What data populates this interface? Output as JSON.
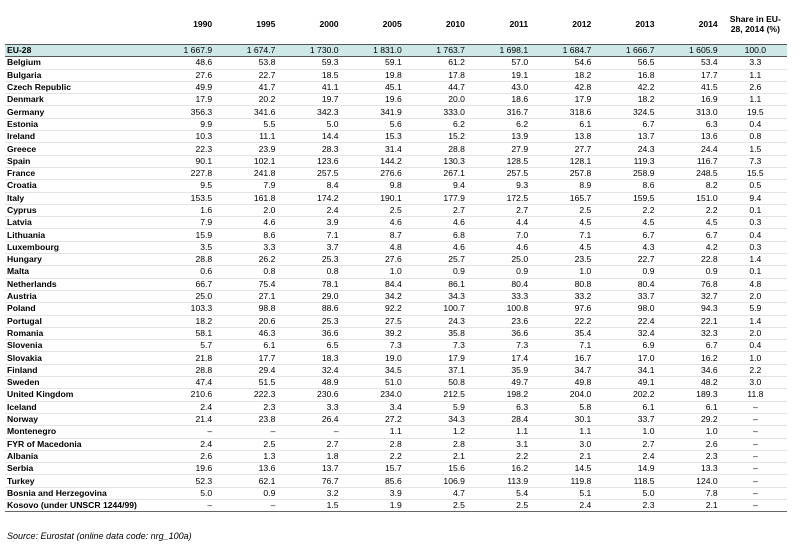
{
  "table": {
    "columns": [
      "1990",
      "1995",
      "2000",
      "2005",
      "2010",
      "2011",
      "2012",
      "2013",
      "2014",
      "Share in EU-28, 2014 (%)"
    ],
    "groups": [
      {
        "rows": [
          {
            "name": "EU-28",
            "values": [
              "1 667.9",
              "1 674.7",
              "1 730.0",
              "1 831.0",
              "1 763.7",
              "1 698.1",
              "1 684.7",
              "1 666.7",
              "1 605.9",
              "100.0"
            ]
          }
        ]
      },
      {
        "rows": [
          {
            "name": "Belgium",
            "values": [
              "48.6",
              "53.8",
              "59.3",
              "59.1",
              "61.2",
              "57.0",
              "54.6",
              "56.5",
              "53.4",
              "3.3"
            ]
          },
          {
            "name": "Bulgaria",
            "values": [
              "27.6",
              "22.7",
              "18.5",
              "19.8",
              "17.8",
              "19.1",
              "18.2",
              "16.8",
              "17.7",
              "1.1"
            ]
          },
          {
            "name": "Czech Republic",
            "values": [
              "49.9",
              "41.7",
              "41.1",
              "45.1",
              "44.7",
              "43.0",
              "42.8",
              "42.2",
              "41.5",
              "2.6"
            ]
          },
          {
            "name": "Denmark",
            "values": [
              "17.9",
              "20.2",
              "19.7",
              "19.6",
              "20.0",
              "18.6",
              "17.9",
              "18.2",
              "16.9",
              "1.1"
            ]
          },
          {
            "name": "Germany",
            "values": [
              "356.3",
              "341.6",
              "342.3",
              "341.9",
              "333.0",
              "316.7",
              "318.6",
              "324.5",
              "313.0",
              "19.5"
            ]
          },
          {
            "name": "Estonia",
            "values": [
              "9.9",
              "5.5",
              "5.0",
              "5.6",
              "6.2",
              "6.2",
              "6.1",
              "6.7",
              "6.3",
              "0.4"
            ]
          },
          {
            "name": "Ireland",
            "values": [
              "10.3",
              "11.1",
              "14.4",
              "15.3",
              "15.2",
              "13.9",
              "13.8",
              "13.7",
              "13.6",
              "0.8"
            ]
          },
          {
            "name": "Greece",
            "values": [
              "22.3",
              "23.9",
              "28.3",
              "31.4",
              "28.8",
              "27.9",
              "27.7",
              "24.3",
              "24.4",
              "1.5"
            ]
          },
          {
            "name": "Spain",
            "values": [
              "90.1",
              "102.1",
              "123.6",
              "144.2",
              "130.3",
              "128.5",
              "128.1",
              "119.3",
              "116.7",
              "7.3"
            ]
          },
          {
            "name": "France",
            "values": [
              "227.8",
              "241.8",
              "257.5",
              "276.6",
              "267.1",
              "257.5",
              "257.8",
              "258.9",
              "248.5",
              "15.5"
            ]
          },
          {
            "name": "Croatia",
            "values": [
              "9.5",
              "7.9",
              "8.4",
              "9.8",
              "9.4",
              "9.3",
              "8.9",
              "8.6",
              "8.2",
              "0.5"
            ]
          },
          {
            "name": "Italy",
            "values": [
              "153.5",
              "161.8",
              "174.2",
              "190.1",
              "177.9",
              "172.5",
              "165.7",
              "159.5",
              "151.0",
              "9.4"
            ]
          },
          {
            "name": "Cyprus",
            "values": [
              "1.6",
              "2.0",
              "2.4",
              "2.5",
              "2.7",
              "2.7",
              "2.5",
              "2.2",
              "2.2",
              "0.1"
            ]
          },
          {
            "name": "Latvia",
            "values": [
              "7.9",
              "4.6",
              "3.9",
              "4.6",
              "4.6",
              "4.4",
              "4.5",
              "4.5",
              "4.5",
              "0.3"
            ]
          },
          {
            "name": "Lithuania",
            "values": [
              "15.9",
              "8.6",
              "7.1",
              "8.7",
              "6.8",
              "7.0",
              "7.1",
              "6.7",
              "6.7",
              "0.4"
            ]
          },
          {
            "name": "Luxembourg",
            "values": [
              "3.5",
              "3.3",
              "3.7",
              "4.8",
              "4.6",
              "4.6",
              "4.5",
              "4.3",
              "4.2",
              "0.3"
            ]
          },
          {
            "name": "Hungary",
            "values": [
              "28.8",
              "26.2",
              "25.3",
              "27.6",
              "25.7",
              "25.0",
              "23.5",
              "22.7",
              "22.8",
              "1.4"
            ]
          },
          {
            "name": "Malta",
            "values": [
              "0.6",
              "0.8",
              "0.8",
              "1.0",
              "0.9",
              "0.9",
              "1.0",
              "0.9",
              "0.9",
              "0.1"
            ]
          },
          {
            "name": "Netherlands",
            "values": [
              "66.7",
              "75.4",
              "78.1",
              "84.4",
              "86.1",
              "80.4",
              "80.8",
              "80.4",
              "76.8",
              "4.8"
            ]
          },
          {
            "name": "Austria",
            "values": [
              "25.0",
              "27.1",
              "29.0",
              "34.2",
              "34.3",
              "33.3",
              "33.2",
              "33.7",
              "32.7",
              "2.0"
            ]
          },
          {
            "name": "Poland",
            "values": [
              "103.3",
              "98.8",
              "88.6",
              "92.2",
              "100.7",
              "100.8",
              "97.6",
              "98.0",
              "94.3",
              "5.9"
            ]
          },
          {
            "name": "Portugal",
            "values": [
              "18.2",
              "20.6",
              "25.3",
              "27.5",
              "24.3",
              "23.6",
              "22.2",
              "22.4",
              "22.1",
              "1.4"
            ]
          },
          {
            "name": "Romania",
            "values": [
              "58.1",
              "46.3",
              "36.6",
              "39.2",
              "35.8",
              "36.6",
              "35.4",
              "32.4",
              "32.3",
              "2.0"
            ]
          },
          {
            "name": "Slovenia",
            "values": [
              "5.7",
              "6.1",
              "6.5",
              "7.3",
              "7.3",
              "7.3",
              "7.1",
              "6.9",
              "6.7",
              "0.4"
            ]
          },
          {
            "name": "Slovakia",
            "values": [
              "21.8",
              "17.7",
              "18.3",
              "19.0",
              "17.9",
              "17.4",
              "16.7",
              "17.0",
              "16.2",
              "1.0"
            ]
          },
          {
            "name": "Finland",
            "values": [
              "28.8",
              "29.4",
              "32.4",
              "34.5",
              "37.1",
              "35.9",
              "34.7",
              "34.1",
              "34.6",
              "2.2"
            ]
          },
          {
            "name": "Sweden",
            "values": [
              "47.4",
              "51.5",
              "48.9",
              "51.0",
              "50.8",
              "49.7",
              "49.8",
              "49.1",
              "48.2",
              "3.0"
            ]
          },
          {
            "name": "United Kingdom",
            "values": [
              "210.6",
              "222.3",
              "230.6",
              "234.0",
              "212.5",
              "198.2",
              "204.0",
              "202.2",
              "189.3",
              "11.8"
            ]
          }
        ]
      },
      {
        "rows": [
          {
            "name": "Iceland",
            "values": [
              "2.4",
              "2.3",
              "3.3",
              "3.4",
              "5.9",
              "6.3",
              "5.8",
              "6.1",
              "6.1",
              "–"
            ]
          },
          {
            "name": "Norway",
            "values": [
              "21.4",
              "23.8",
              "26.4",
              "27.2",
              "34.3",
              "28.4",
              "30.1",
              "33.7",
              "29.2",
              "–"
            ]
          }
        ]
      },
      {
        "rows": [
          {
            "name": "Montenegro",
            "values": [
              "–",
              "–",
              "–",
              "1.1",
              "1.2",
              "1.1",
              "1.1",
              "1.0",
              "1.0",
              "–"
            ]
          },
          {
            "name": "FYR of Macedonia",
            "values": [
              "2.4",
              "2.5",
              "2.7",
              "2.8",
              "2.8",
              "3.1",
              "3.0",
              "2.7",
              "2.6",
              "–"
            ]
          },
          {
            "name": "Albania",
            "values": [
              "2.6",
              "1.3",
              "1.8",
              "2.2",
              "2.1",
              "2.2",
              "2.1",
              "2.4",
              "2.3",
              "–"
            ]
          },
          {
            "name": "Serbia",
            "values": [
              "19.6",
              "13.6",
              "13.7",
              "15.7",
              "15.6",
              "16.2",
              "14.5",
              "14.9",
              "13.3",
              "–"
            ]
          },
          {
            "name": "Turkey",
            "values": [
              "52.3",
              "62.1",
              "76.7",
              "85.6",
              "106.9",
              "113.9",
              "119.8",
              "118.5",
              "124.0",
              "–"
            ]
          }
        ]
      },
      {
        "rows": [
          {
            "name": "Bosnia and Herzegovina",
            "values": [
              "5.0",
              "0.9",
              "3.2",
              "3.9",
              "4.7",
              "5.4",
              "5.1",
              "5.0",
              "7.8",
              "–"
            ]
          },
          {
            "name": "Kosovo (under UNSCR 1244/99)",
            "values": [
              "–",
              "–",
              "1.5",
              "1.9",
              "2.5",
              "2.5",
              "2.4",
              "2.3",
              "2.1",
              "–"
            ]
          }
        ]
      }
    ]
  },
  "source": "Source: Eurostat (online data code: nrg_100a)"
}
